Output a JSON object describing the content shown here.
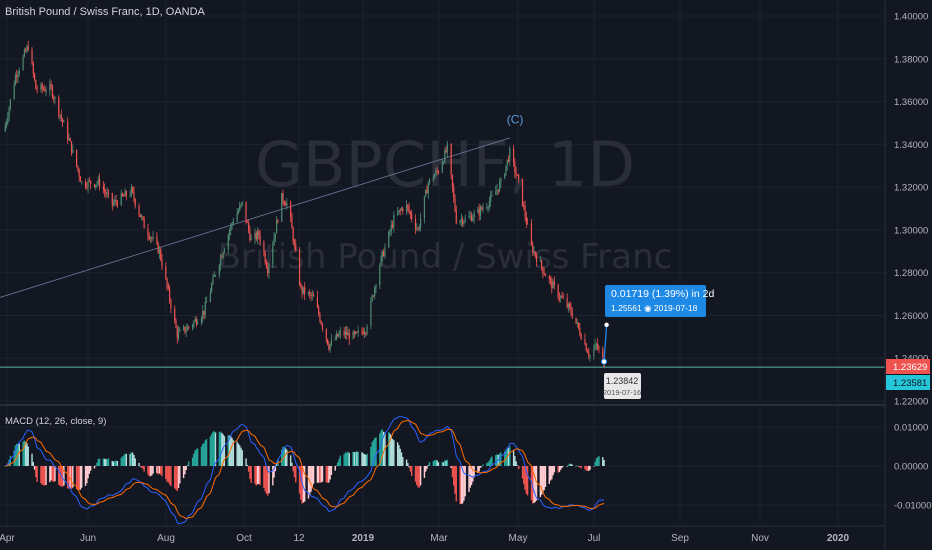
{
  "header": {
    "title": "British Pound / Swiss Franc, 1D, OANDA"
  },
  "watermark": {
    "symbol": "GBPCHF, 1D",
    "name": "British Pound / Swiss Franc"
  },
  "price_axis": {
    "ticks": [
      "1.40000",
      "1.38000",
      "1.36000",
      "1.34000",
      "1.32000",
      "1.30000",
      "1.28000",
      "1.26000",
      "1.24000",
      "1.22000"
    ],
    "last_price_label": "1.23629",
    "line_price_label": "1.23581"
  },
  "macd_axis": {
    "ticks": [
      "0.01000",
      "0.00000",
      "-0.01000"
    ]
  },
  "time_axis": {
    "ticks": [
      "Apr",
      "Jun",
      "Aug",
      "Oct",
      "12",
      "2019",
      "Mar",
      "May",
      "Jul",
      "Sep",
      "Nov",
      "2020"
    ]
  },
  "macd_label": "MACD (12, 26, close, 9)",
  "wave_label": "(C)",
  "measure": {
    "line1": "0.01719 (1.39%) in 2d",
    "line2": "1.25561  ◉ 2019-07-18"
  },
  "point_label": {
    "price": "1.23842",
    "date": "2019-07-16"
  },
  "colors": {
    "background": "#131722",
    "up": "#26a69a",
    "up_dim": "#4e8b72",
    "down": "#ef5350",
    "macd": "#2962ff",
    "signal": "#ff6d00",
    "measure": "#1e88e5",
    "line": "#5fb8b0",
    "last_price": "#ef5350",
    "line_price": "#26c6da"
  },
  "chart_data": [
    {
      "type": "candlestick",
      "title": "British Pound / Swiss Franc, 1D, OANDA",
      "symbol": "GBPCHF",
      "ylim": [
        1.22,
        1.4
      ],
      "x_ticks": [
        "Apr",
        "Jun",
        "Aug",
        "Oct",
        "12",
        "2019",
        "Mar",
        "May",
        "Jul",
        "Sep",
        "Nov",
        "2020"
      ],
      "anchors": [
        {
          "x": "2018-04-01",
          "close": 1.346
        },
        {
          "x": "2018-04-10",
          "close": 1.372
        },
        {
          "x": "2018-04-20",
          "close": 1.386
        },
        {
          "x": "2018-04-26",
          "close": 1.366
        },
        {
          "x": "2018-05-08",
          "close": 1.366
        },
        {
          "x": "2018-05-22",
          "close": 1.342
        },
        {
          "x": "2018-06-01",
          "close": 1.322
        },
        {
          "x": "2018-06-15",
          "close": 1.322
        },
        {
          "x": "2018-06-25",
          "close": 1.312
        },
        {
          "x": "2018-07-10",
          "close": 1.318
        },
        {
          "x": "2018-07-20",
          "close": 1.302
        },
        {
          "x": "2018-08-01",
          "close": 1.29
        },
        {
          "x": "2018-08-15",
          "close": 1.251
        },
        {
          "x": "2018-08-25",
          "close": 1.255
        },
        {
          "x": "2018-09-05",
          "close": 1.262
        },
        {
          "x": "2018-09-15",
          "close": 1.282
        },
        {
          "x": "2018-09-28",
          "close": 1.305
        },
        {
          "x": "2018-10-05",
          "close": 1.312
        },
        {
          "x": "2018-10-12",
          "close": 1.295
        },
        {
          "x": "2018-10-18",
          "close": 1.298
        },
        {
          "x": "2018-10-25",
          "close": 1.282
        },
        {
          "x": "2018-11-05",
          "close": 1.315
        },
        {
          "x": "2018-11-10",
          "close": 1.312
        },
        {
          "x": "2018-11-20",
          "close": 1.272
        },
        {
          "x": "2018-11-30",
          "close": 1.268
        },
        {
          "x": "2018-12-12",
          "close": 1.246
        },
        {
          "x": "2018-12-22",
          "close": 1.252
        },
        {
          "x": "2019-01-01",
          "close": 1.25
        },
        {
          "x": "2019-01-10",
          "close": 1.254
        },
        {
          "x": "2019-01-20",
          "close": 1.282
        },
        {
          "x": "2019-02-01",
          "close": 1.305
        },
        {
          "x": "2019-02-10",
          "close": 1.312
        },
        {
          "x": "2019-02-20",
          "close": 1.3
        },
        {
          "x": "2019-02-28",
          "close": 1.322
        },
        {
          "x": "2019-03-08",
          "close": 1.328
        },
        {
          "x": "2019-03-15",
          "close": 1.338
        },
        {
          "x": "2019-03-22",
          "close": 1.305
        },
        {
          "x": "2019-03-30",
          "close": 1.305
        },
        {
          "x": "2019-04-08",
          "close": 1.308
        },
        {
          "x": "2019-04-18",
          "close": 1.314
        },
        {
          "x": "2019-04-26",
          "close": 1.322
        },
        {
          "x": "2019-05-03",
          "close": 1.336
        },
        {
          "x": "2019-05-10",
          "close": 1.322
        },
        {
          "x": "2019-05-20",
          "close": 1.292
        },
        {
          "x": "2019-06-01",
          "close": 1.278
        },
        {
          "x": "2019-06-10",
          "close": 1.27
        },
        {
          "x": "2019-06-20",
          "close": 1.262
        },
        {
          "x": "2019-06-28",
          "close": 1.251
        },
        {
          "x": "2019-07-05",
          "close": 1.241
        },
        {
          "x": "2019-07-10",
          "close": 1.246
        },
        {
          "x": "2019-07-16",
          "close": 1.238
        }
      ],
      "horizontal_line": 1.23581,
      "trendline": [
        {
          "x": "2018-02-01",
          "y": 1.258
        },
        {
          "x": "2019-05-03",
          "y": 1.343
        }
      ],
      "annotations": [
        {
          "text": "(C)",
          "x": "2019-05-03",
          "y": 1.346
        },
        {
          "text": "0.01719 (1.39%) in 2d",
          "from": {
            "x": "2019-07-16",
            "y": 1.23842
          },
          "to": {
            "x": "2019-07-18",
            "y": 1.25561
          }
        }
      ]
    },
    {
      "type": "line",
      "title": "MACD (12, 26, close, 9)",
      "ylim": [
        -0.012,
        0.013
      ],
      "series": []
    }
  ]
}
